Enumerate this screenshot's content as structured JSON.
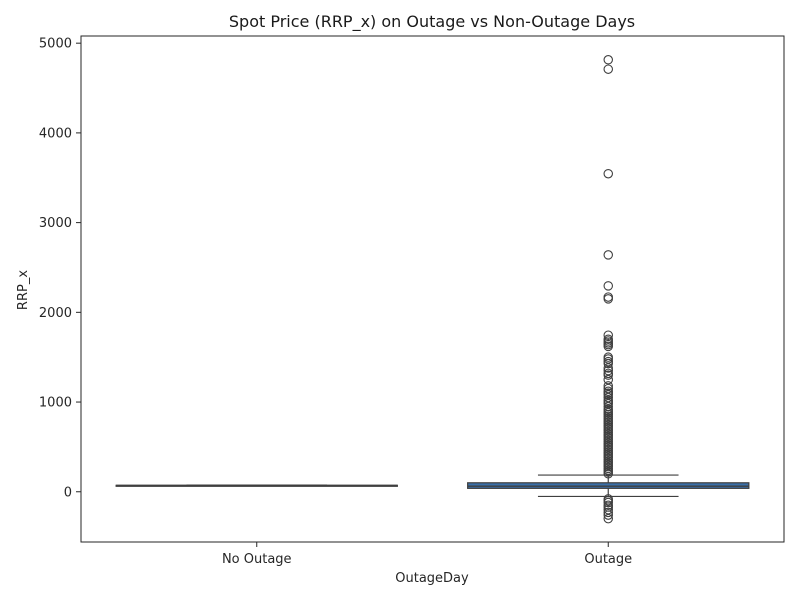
{
  "chart_data": {
    "type": "box",
    "title": "Spot Price (RRP_x) on Outage vs Non-Outage Days",
    "xlabel": "OutageDay",
    "ylabel": "RRP_x",
    "categories": [
      "No Outage",
      "Outage"
    ],
    "ylim": [
      -560,
      5080
    ],
    "yticks": [
      0,
      1000,
      2000,
      3000,
      4000,
      5000
    ],
    "grid": false,
    "colors": {
      "outage_box": "#3a6fa8",
      "no_outage_box": "#7aa6d0",
      "line": "#3f3f3f"
    },
    "boxes": [
      {
        "category": "No Outage",
        "whisker_low": 65,
        "q1": 67,
        "median": 70,
        "q3": 72,
        "whisker_high": 74,
        "outliers": []
      },
      {
        "category": "Outage",
        "whisker_low": -52,
        "q1": 38,
        "median": 62,
        "q3": 100,
        "whisker_high": 186,
        "outliers": [
          4815,
          4710,
          3545,
          2640,
          2295,
          2170,
          2150,
          1745,
          1700,
          1680,
          1660,
          1640,
          1620,
          1500,
          1480,
          1450,
          1430,
          1380,
          1350,
          1320,
          1300,
          1250,
          1180,
          1150,
          1120,
          1100,
          1080,
          1050,
          1020,
          1000,
          980,
          950,
          920,
          900,
          880,
          860,
          840,
          820,
          800,
          780,
          760,
          740,
          720,
          700,
          680,
          660,
          640,
          620,
          600,
          580,
          560,
          540,
          520,
          500,
          480,
          460,
          440,
          420,
          400,
          380,
          360,
          340,
          320,
          300,
          280,
          260,
          240,
          220,
          200,
          -80,
          -100,
          -120,
          -150,
          -170,
          -200,
          -230,
          -260,
          -300
        ]
      }
    ]
  }
}
